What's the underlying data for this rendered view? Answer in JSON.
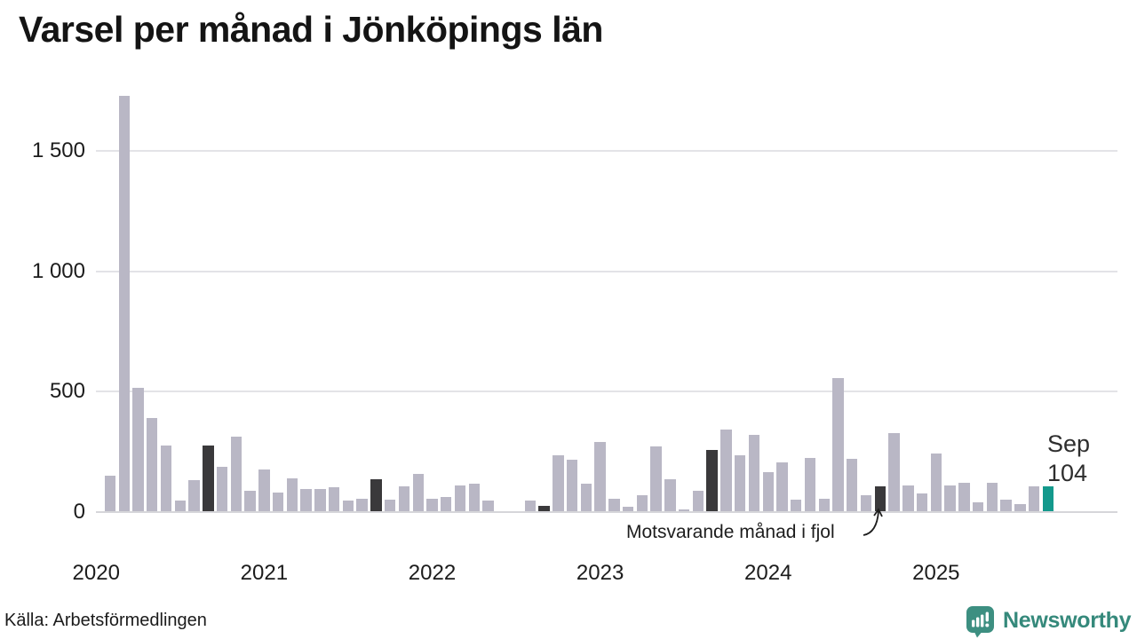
{
  "title": "Varsel per månad i Jönköpings län",
  "source": "Källa: Arbetsförmedlingen",
  "annotation": {
    "text": "Motsvarande månad i fjol",
    "points_to": "2024-09"
  },
  "last_point_label": {
    "line1": "Sep",
    "line2": "104"
  },
  "logo": {
    "text": "Newsworthy"
  },
  "colors": {
    "bar_normal": "#b9b7c5",
    "bar_prior_september": "#3a393b",
    "bar_current": "#13998c",
    "grid": "#e3e3e7",
    "axis_text": "#1c1c1c",
    "logo_teal": "#3d8f81",
    "logo_text_teal": "#35897b"
  },
  "chart_data": {
    "type": "bar",
    "title": "Varsel per månad i Jönköpings län",
    "xlabel": "",
    "ylabel": "",
    "ylim": [
      0,
      1750
    ],
    "yticks": [
      {
        "value": 0,
        "label": "0"
      },
      {
        "value": 500,
        "label": "500"
      },
      {
        "value": 1000,
        "label": "1 000"
      },
      {
        "value": 1500,
        "label": "1 500"
      }
    ],
    "year_labels": [
      "2020",
      "2021",
      "2022",
      "2023",
      "2024",
      "2025"
    ],
    "grid": true,
    "legend": false,
    "months": [
      {
        "label": "2020-02",
        "value": 150,
        "highlight": "none"
      },
      {
        "label": "2020-03",
        "value": 1730,
        "highlight": "none"
      },
      {
        "label": "2020-04",
        "value": 515,
        "highlight": "none"
      },
      {
        "label": "2020-05",
        "value": 390,
        "highlight": "none"
      },
      {
        "label": "2020-06",
        "value": 275,
        "highlight": "none"
      },
      {
        "label": "2020-07",
        "value": 45,
        "highlight": "none"
      },
      {
        "label": "2020-08",
        "value": 130,
        "highlight": "none"
      },
      {
        "label": "2020-09",
        "value": 275,
        "highlight": "prior_september"
      },
      {
        "label": "2020-10",
        "value": 185,
        "highlight": "none"
      },
      {
        "label": "2020-11",
        "value": 310,
        "highlight": "none"
      },
      {
        "label": "2020-12",
        "value": 85,
        "highlight": "none"
      },
      {
        "label": "2021-01",
        "value": 175,
        "highlight": "none"
      },
      {
        "label": "2021-02",
        "value": 80,
        "highlight": "none"
      },
      {
        "label": "2021-03",
        "value": 140,
        "highlight": "none"
      },
      {
        "label": "2021-04",
        "value": 95,
        "highlight": "none"
      },
      {
        "label": "2021-05",
        "value": 95,
        "highlight": "none"
      },
      {
        "label": "2021-06",
        "value": 100,
        "highlight": "none"
      },
      {
        "label": "2021-07",
        "value": 45,
        "highlight": "none"
      },
      {
        "label": "2021-08",
        "value": 55,
        "highlight": "none"
      },
      {
        "label": "2021-09",
        "value": 135,
        "highlight": "prior_september"
      },
      {
        "label": "2021-10",
        "value": 50,
        "highlight": "none"
      },
      {
        "label": "2021-11",
        "value": 105,
        "highlight": "none"
      },
      {
        "label": "2021-12",
        "value": 155,
        "highlight": "none"
      },
      {
        "label": "2022-01",
        "value": 55,
        "highlight": "none"
      },
      {
        "label": "2022-02",
        "value": 60,
        "highlight": "none"
      },
      {
        "label": "2022-03",
        "value": 110,
        "highlight": "none"
      },
      {
        "label": "2022-04",
        "value": 115,
        "highlight": "none"
      },
      {
        "label": "2022-05",
        "value": 45,
        "highlight": "none"
      },
      {
        "label": "2022-06",
        "value": 0,
        "highlight": "none"
      },
      {
        "label": "2022-07",
        "value": 0,
        "highlight": "none"
      },
      {
        "label": "2022-08",
        "value": 45,
        "highlight": "none"
      },
      {
        "label": "2022-09",
        "value": 25,
        "highlight": "prior_september"
      },
      {
        "label": "2022-10",
        "value": 235,
        "highlight": "none"
      },
      {
        "label": "2022-11",
        "value": 215,
        "highlight": "none"
      },
      {
        "label": "2022-12",
        "value": 115,
        "highlight": "none"
      },
      {
        "label": "2023-01",
        "value": 290,
        "highlight": "none"
      },
      {
        "label": "2023-02",
        "value": 55,
        "highlight": "none"
      },
      {
        "label": "2023-03",
        "value": 20,
        "highlight": "none"
      },
      {
        "label": "2023-04",
        "value": 70,
        "highlight": "none"
      },
      {
        "label": "2023-05",
        "value": 270,
        "highlight": "none"
      },
      {
        "label": "2023-06",
        "value": 135,
        "highlight": "none"
      },
      {
        "label": "2023-07",
        "value": 10,
        "highlight": "none"
      },
      {
        "label": "2023-08",
        "value": 85,
        "highlight": "none"
      },
      {
        "label": "2023-09",
        "value": 255,
        "highlight": "prior_september"
      },
      {
        "label": "2023-10",
        "value": 340,
        "highlight": "none"
      },
      {
        "label": "2023-11",
        "value": 235,
        "highlight": "none"
      },
      {
        "label": "2023-12",
        "value": 320,
        "highlight": "none"
      },
      {
        "label": "2024-01",
        "value": 165,
        "highlight": "none"
      },
      {
        "label": "2024-02",
        "value": 205,
        "highlight": "none"
      },
      {
        "label": "2024-03",
        "value": 50,
        "highlight": "none"
      },
      {
        "label": "2024-04",
        "value": 225,
        "highlight": "none"
      },
      {
        "label": "2024-05",
        "value": 55,
        "highlight": "none"
      },
      {
        "label": "2024-06",
        "value": 555,
        "highlight": "none"
      },
      {
        "label": "2024-07",
        "value": 220,
        "highlight": "none"
      },
      {
        "label": "2024-08",
        "value": 70,
        "highlight": "none"
      },
      {
        "label": "2024-09",
        "value": 105,
        "highlight": "prior_september"
      },
      {
        "label": "2024-10",
        "value": 325,
        "highlight": "none"
      },
      {
        "label": "2024-11",
        "value": 110,
        "highlight": "none"
      },
      {
        "label": "2024-12",
        "value": 75,
        "highlight": "none"
      },
      {
        "label": "2025-01",
        "value": 240,
        "highlight": "none"
      },
      {
        "label": "2025-02",
        "value": 110,
        "highlight": "none"
      },
      {
        "label": "2025-03",
        "value": 120,
        "highlight": "none"
      },
      {
        "label": "2025-04",
        "value": 40,
        "highlight": "none"
      },
      {
        "label": "2025-05",
        "value": 120,
        "highlight": "none"
      },
      {
        "label": "2025-06",
        "value": 50,
        "highlight": "none"
      },
      {
        "label": "2025-07",
        "value": 30,
        "highlight": "none"
      },
      {
        "label": "2025-08",
        "value": 105,
        "highlight": "none"
      },
      {
        "label": "2025-09",
        "value": 104,
        "highlight": "current"
      }
    ]
  }
}
